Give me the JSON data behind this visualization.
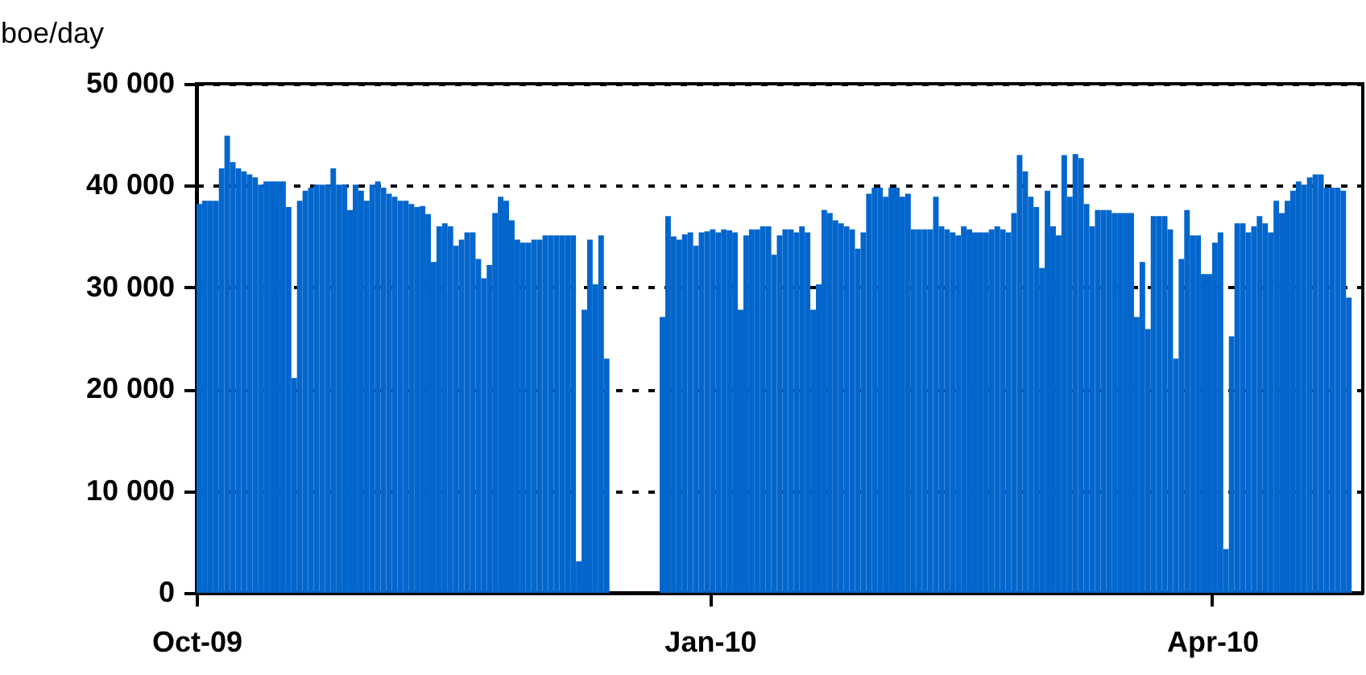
{
  "chart_data": {
    "type": "bar",
    "ylabel": "boe/day",
    "x": [
      "2009-10-01",
      "2009-10-02",
      "2009-10-03",
      "2009-10-04",
      "2009-10-05",
      "2009-10-06",
      "2009-10-07",
      "2009-10-08",
      "2009-10-09",
      "2009-10-10",
      "2009-10-11",
      "2009-10-12",
      "2009-10-13",
      "2009-10-14",
      "2009-10-15",
      "2009-10-16",
      "2009-10-17",
      "2009-10-18",
      "2009-10-19",
      "2009-10-20",
      "2009-10-21",
      "2009-10-22",
      "2009-10-23",
      "2009-10-24",
      "2009-10-25",
      "2009-10-26",
      "2009-10-27",
      "2009-10-28",
      "2009-10-29",
      "2009-10-30",
      "2009-10-31",
      "2009-11-01",
      "2009-11-02",
      "2009-11-03",
      "2009-11-04",
      "2009-11-05",
      "2009-11-06",
      "2009-11-07",
      "2009-11-08",
      "2009-11-09",
      "2009-11-10",
      "2009-11-11",
      "2009-11-12",
      "2009-11-13",
      "2009-11-14",
      "2009-11-15",
      "2009-11-16",
      "2009-11-17",
      "2009-11-18",
      "2009-11-19",
      "2009-11-20",
      "2009-11-21",
      "2009-11-22",
      "2009-11-23",
      "2009-11-24",
      "2009-11-25",
      "2009-11-26",
      "2009-11-27",
      "2009-11-28",
      "2009-11-29",
      "2009-11-30",
      "2009-12-01",
      "2009-12-02",
      "2009-12-03",
      "2009-12-04",
      "2009-12-05",
      "2009-12-06",
      "2009-12-07",
      "2009-12-08",
      "2009-12-09",
      "2009-12-10",
      "2009-12-11",
      "2009-12-12",
      "2009-12-13",
      "2009-12-14",
      "2009-12-15",
      "2009-12-16",
      "2009-12-17",
      "2009-12-18",
      "2009-12-19",
      "2009-12-20",
      "2009-12-21",
      "2009-12-22",
      "2009-12-23",
      "2009-12-24",
      "2009-12-25",
      "2009-12-26",
      "2009-12-27",
      "2009-12-28",
      "2009-12-29",
      "2009-12-30",
      "2009-12-31",
      "2010-01-01",
      "2010-01-02",
      "2010-01-03",
      "2010-01-04",
      "2010-01-05",
      "2010-01-06",
      "2010-01-07",
      "2010-01-08",
      "2010-01-09",
      "2010-01-10",
      "2010-01-11",
      "2010-01-12",
      "2010-01-13",
      "2010-01-14",
      "2010-01-15",
      "2010-01-16",
      "2010-01-17",
      "2010-01-18",
      "2010-01-19",
      "2010-01-20",
      "2010-01-21",
      "2010-01-22",
      "2010-01-23",
      "2010-01-24",
      "2010-01-25",
      "2010-01-26",
      "2010-01-27",
      "2010-01-28",
      "2010-01-29",
      "2010-01-30",
      "2010-01-31",
      "2010-02-01",
      "2010-02-02",
      "2010-02-03",
      "2010-02-04",
      "2010-02-05",
      "2010-02-06",
      "2010-02-07",
      "2010-02-08",
      "2010-02-09",
      "2010-02-10",
      "2010-02-11",
      "2010-02-12",
      "2010-02-13",
      "2010-02-14",
      "2010-02-15",
      "2010-02-16",
      "2010-02-17",
      "2010-02-18",
      "2010-02-19",
      "2010-02-20",
      "2010-02-21",
      "2010-02-22",
      "2010-02-23",
      "2010-02-24",
      "2010-02-25",
      "2010-02-26",
      "2010-02-27",
      "2010-02-28",
      "2010-03-01",
      "2010-03-02",
      "2010-03-03",
      "2010-03-04",
      "2010-03-05",
      "2010-03-06",
      "2010-03-07",
      "2010-03-08",
      "2010-03-09",
      "2010-03-10",
      "2010-03-11",
      "2010-03-12",
      "2010-03-13",
      "2010-03-14",
      "2010-03-15",
      "2010-03-16",
      "2010-03-17",
      "2010-03-18",
      "2010-03-19",
      "2010-03-20",
      "2010-03-21",
      "2010-03-22",
      "2010-03-23",
      "2010-03-24",
      "2010-03-25",
      "2010-03-26",
      "2010-03-27",
      "2010-03-28",
      "2010-03-29",
      "2010-03-30",
      "2010-03-31",
      "2010-04-01",
      "2010-04-02",
      "2010-04-03",
      "2010-04-04",
      "2010-04-05",
      "2010-04-06",
      "2010-04-07",
      "2010-04-08",
      "2010-04-09",
      "2010-04-10",
      "2010-04-11",
      "2010-04-12",
      "2010-04-13",
      "2010-04-14",
      "2010-04-15",
      "2010-04-16",
      "2010-04-17",
      "2010-04-18",
      "2010-04-19",
      "2010-04-20",
      "2010-04-21",
      "2010-04-22",
      "2010-04-23",
      "2010-04-24",
      "2010-04-25"
    ],
    "series": [
      {
        "color": "#0366cc",
        "values": [
          38200,
          38500,
          38500,
          38500,
          41700,
          44900,
          42300,
          41700,
          41400,
          41100,
          40800,
          40100,
          40400,
          40400,
          40400,
          40400,
          37900,
          21100,
          38500,
          39500,
          39800,
          40100,
          40100,
          40100,
          41700,
          40100,
          40100,
          37600,
          40100,
          39500,
          38500,
          40100,
          40400,
          39800,
          39200,
          38900,
          38500,
          38500,
          38200,
          37900,
          38000,
          37200,
          32500,
          36000,
          36300,
          36000,
          34100,
          34700,
          35400,
          35400,
          32800,
          30900,
          32200,
          37300,
          38900,
          38500,
          36600,
          34700,
          34400,
          34400,
          34700,
          34700,
          35100,
          35100,
          35100,
          35100,
          35100,
          35100,
          3100,
          27800,
          34700,
          30300,
          35100,
          23000,
          null,
          null,
          null,
          null,
          null,
          null,
          null,
          null,
          null,
          27100,
          37000,
          35000,
          34700,
          35200,
          35400,
          34100,
          35400,
          35500,
          35700,
          35400,
          35700,
          35600,
          35400,
          27800,
          35100,
          35700,
          35700,
          36000,
          36000,
          33200,
          35100,
          35700,
          35700,
          35400,
          36000,
          35400,
          27800,
          30300,
          37600,
          37300,
          36600,
          36300,
          36000,
          35700,
          33800,
          35400,
          39200,
          39800,
          39800,
          38900,
          39800,
          39800,
          38900,
          39200,
          35700,
          35700,
          35700,
          35700,
          38900,
          36000,
          35700,
          35400,
          35100,
          36000,
          35700,
          35400,
          35400,
          35400,
          35700,
          36000,
          35700,
          35400,
          37300,
          43000,
          41400,
          38900,
          37900,
          31900,
          39500,
          36000,
          35100,
          43000,
          38900,
          43100,
          42700,
          38200,
          36000,
          37600,
          37600,
          37600,
          37300,
          37300,
          37300,
          37300,
          27100,
          32500,
          25900,
          37000,
          37000,
          37000,
          35700,
          23000,
          32800,
          37600,
          35100,
          35100,
          31300,
          31300,
          34400,
          35400,
          4300,
          25200,
          36300,
          36300,
          35400,
          36000,
          37000,
          36300,
          35400,
          38500,
          37300,
          38500,
          39500,
          40400,
          40100,
          40800,
          41100,
          41100,
          39800,
          39800,
          39800,
          39500,
          29000
        ]
      }
    ],
    "xlim": [
      "2009-10-01",
      "2010-04-28"
    ],
    "xticks": [
      {
        "value": "2009-10-01",
        "label": "Oct-09"
      },
      {
        "value": "2010-01-01",
        "label": "Jan-10"
      },
      {
        "value": "2010-04-01",
        "label": "Apr-10"
      }
    ],
    "ylim": [
      0,
      50000
    ],
    "yticks": [
      0,
      {
        "value": 10000,
        "label": "10 000"
      },
      {
        "value": 20000,
        "label": "20 000"
      },
      {
        "value": 30000,
        "label": "30 000"
      },
      {
        "value": 40000,
        "label": "40 000"
      },
      {
        "value": 50000,
        "label": "50 000"
      }
    ],
    "grid": "y",
    "legend": false
  }
}
